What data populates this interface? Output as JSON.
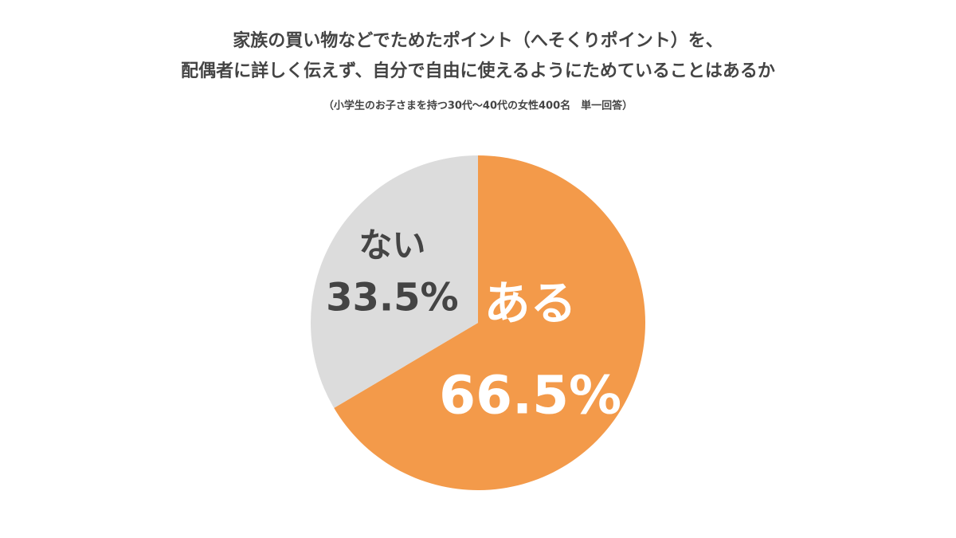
{
  "chart_data": {
    "type": "pie",
    "title": [
      "家族の買い物などでためたポイント（へそくりポイント）を、",
      "配偶者に詳しく伝えず、自分で自由に使えるようにためていることはあるか"
    ],
    "subtitle": "（小学生のお子さまを持つ30代〜40代の女性400名　単一回答）",
    "categories": [
      "ある",
      "ない"
    ],
    "values": [
      66.5,
      33.5
    ],
    "value_labels": [
      "66.5%",
      "33.5%"
    ],
    "colors": [
      "#f39a4a",
      "#dcdcdc"
    ],
    "label_colors": [
      "#ffffff",
      "#444444"
    ]
  }
}
